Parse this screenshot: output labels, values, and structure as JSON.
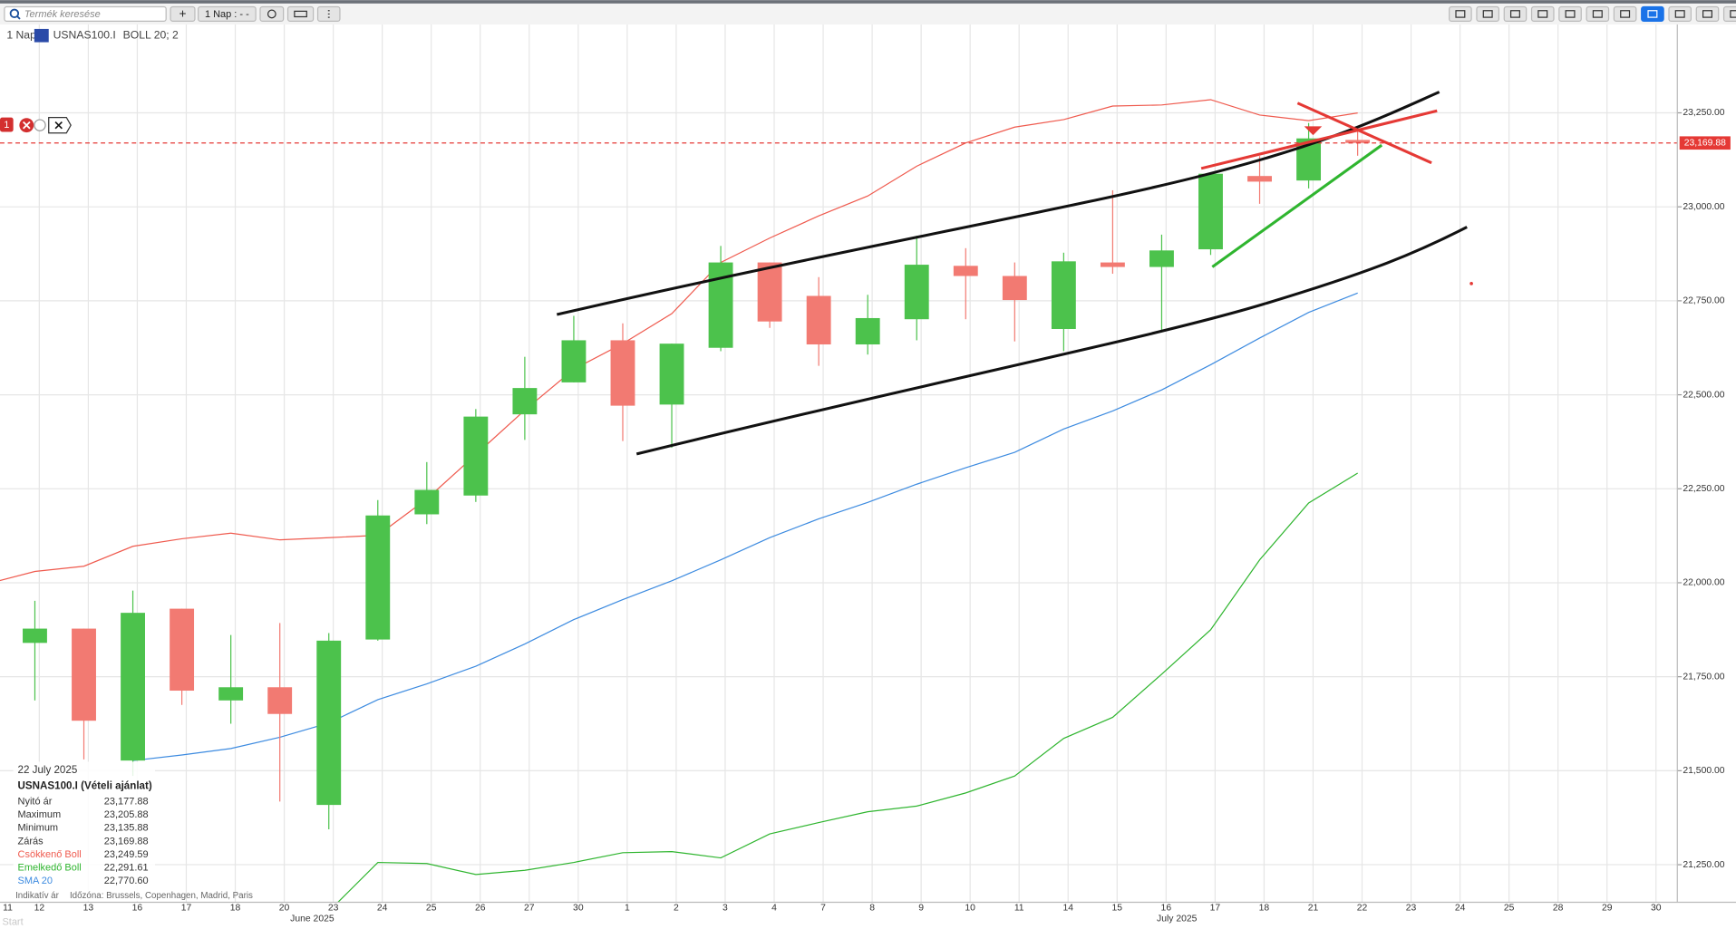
{
  "toolbar": {
    "search_placeholder": "Termék keresése",
    "add": "+",
    "interval": "1 Nap : - -"
  },
  "legend": {
    "interval": "1 Nap",
    "symbol": "USNAS100.I",
    "indicator": "BOLL 20; 2"
  },
  "order_badge": "1",
  "start_label": "Start",
  "tooltip": {
    "date": "22 July 2025",
    "title": "USNAS100.I (Vételi ajánlat)",
    "rows": [
      {
        "label": "Nyitó ár",
        "value": "23,177.88"
      },
      {
        "label": "Maximum",
        "value": "23,205.88"
      },
      {
        "label": "Minimum",
        "value": "23,135.88"
      },
      {
        "label": "Zárás",
        "value": "23,169.88"
      }
    ],
    "indicator_values": [
      "23,249.59",
      "22,291.61",
      "22,770.60"
    ],
    "footer_left": "Indikatív ár",
    "footer_right": "Időzóna: Brussels, Copenhagen, Madrid, Paris"
  },
  "chart_data": {
    "type": "candlestick",
    "categories": [
      "11",
      "12",
      "13",
      "16",
      "17",
      "18",
      "20",
      "23",
      "24",
      "25",
      "26",
      "27",
      "30",
      "1",
      "2",
      "3",
      "4",
      "7",
      "8",
      "9",
      "10",
      "11",
      "14",
      "15",
      "16",
      "17",
      "18",
      "21",
      "22",
      "23",
      "24",
      "25",
      "28",
      "29",
      "30"
    ],
    "month_labels": [
      "June 2025",
      "July 2025"
    ],
    "open": [
      null,
      21840,
      21878,
      21527,
      21931,
      21687,
      21722,
      21409,
      21849,
      22182,
      22232,
      22448,
      22533,
      22645,
      22474,
      22625,
      22852,
      22763,
      22634,
      22701,
      22843,
      22816,
      22675,
      22852,
      22840,
      22887,
      23082,
      23070,
      23177.88,
      null,
      null,
      null,
      null,
      null,
      null
    ],
    "high": [
      null,
      21952,
      21878,
      21979,
      21931,
      21861,
      21893,
      21866,
      22220,
      22321,
      22462,
      22601,
      22710,
      22690,
      22636,
      22896,
      22852,
      22813,
      22766,
      22923,
      22890,
      22852,
      22878,
      23044,
      22926,
      23088,
      23135,
      23223,
      23205.88,
      null,
      null,
      null,
      null,
      null,
      null
    ],
    "low": [
      null,
      21687,
      21530,
      21486,
      21675,
      21625,
      21418,
      21344,
      21846,
      22156,
      22215,
      22380,
      22533,
      22377,
      22359,
      22616,
      22678,
      22577,
      22607,
      22645,
      22701,
      22642,
      22616,
      22822,
      22666,
      22872,
      23008,
      23049,
      23135.88,
      null,
      null,
      null,
      null,
      null,
      null
    ],
    "close": [
      null,
      21878,
      21633,
      21920,
      21713,
      21722,
      21651,
      21846,
      22179,
      22247,
      22442,
      22518,
      22645,
      22471,
      22636,
      22852,
      22695,
      22634,
      22704,
      22846,
      22816,
      22752,
      22855,
      22840,
      22884,
      23088,
      23067,
      23182,
      23169.88,
      null,
      null,
      null,
      null,
      null,
      null
    ],
    "up_color": "#4cc24c",
    "down_color": "#f27a72",
    "series": [
      {
        "name": "Csökkenő Boll",
        "color": "#ef5a4e",
        "values": [
          21996,
          22030,
          22044,
          22097,
          22117,
          22132,
          22114,
          22120,
          22126,
          22223,
          22341,
          22459,
          22568,
          22636,
          22716,
          22852,
          22917,
          22976,
          23029,
          23108,
          23170,
          23212,
          23232,
          23268,
          23271,
          23285,
          23244,
          23229,
          23249.59,
          null,
          null,
          null,
          null,
          null,
          null
        ]
      },
      {
        "name": "Emelkedő Boll",
        "color": "#2fb52f",
        "values": [
          null,
          null,
          null,
          null,
          null,
          null,
          null,
          21126,
          21256,
          21253,
          21224,
          21235,
          21256,
          21282,
          21285,
          21268,
          21332,
          21362,
          21391,
          21406,
          21441,
          21486,
          21586,
          21642,
          21757,
          21875,
          22061,
          22212,
          22291.61,
          null,
          null,
          null,
          null,
          null,
          null
        ]
      },
      {
        "name": "SMA 20",
        "color": "#3d8be0",
        "values": [
          null,
          null,
          null,
          21527,
          21542,
          21559,
          21589,
          21627,
          21689,
          21731,
          21778,
          21837,
          21902,
          21955,
          22005,
          22061,
          22120,
          22170,
          22214,
          22262,
          22306,
          22347,
          22409,
          22457,
          22513,
          22580,
          22651,
          22719,
          22770.6,
          null,
          null,
          null,
          null,
          null,
          null
        ]
      }
    ],
    "ylim": [
      21150,
      23485
    ],
    "yticks": [
      {
        "value": 21250,
        "label": "21,250.00"
      },
      {
        "value": 21500,
        "label": "21,500.00"
      },
      {
        "value": 21750,
        "label": "21,750.00"
      },
      {
        "value": 22000,
        "label": "22,000.00"
      },
      {
        "value": 22250,
        "label": "22,250.00"
      },
      {
        "value": 22500,
        "label": "22,500.00"
      },
      {
        "value": 22750,
        "label": "22,750.00"
      },
      {
        "value": 23000,
        "label": "23,000.00"
      },
      {
        "value": 23250,
        "label": "23,250.00"
      }
    ],
    "grid": true,
    "price_line": {
      "value": 23169.88,
      "label": "23,169.88",
      "color": "#e53935"
    }
  }
}
